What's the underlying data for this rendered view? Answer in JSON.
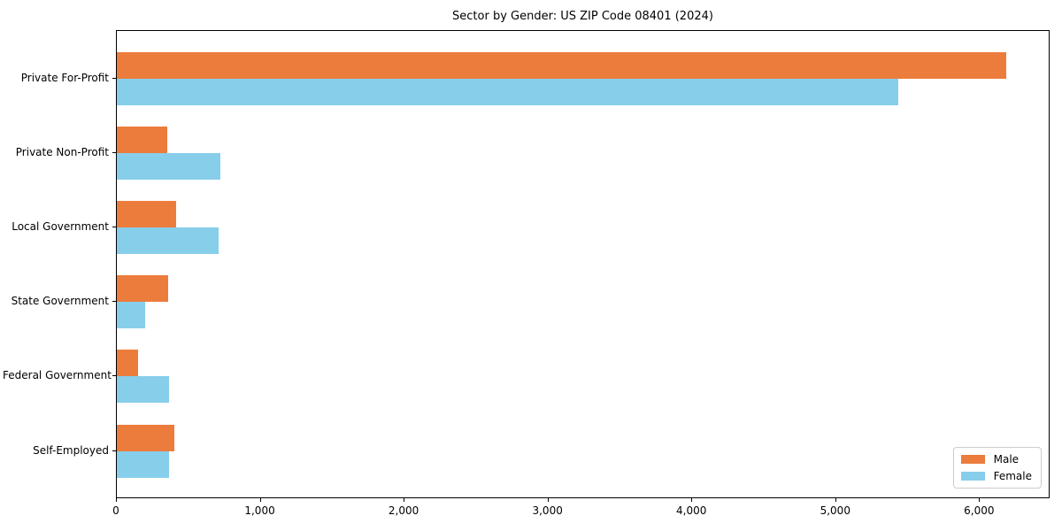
{
  "chart_data": {
    "type": "bar",
    "orientation": "horizontal",
    "title": "Sector by Gender: US ZIP Code 08401 (2024)",
    "categories": [
      "Private For-Profit",
      "Private Non-Profit",
      "Local Government",
      "State Government",
      "Federal Government",
      "Self-Employed"
    ],
    "series": [
      {
        "name": "Male",
        "color": "#ec7c3c",
        "values": [
          6180,
          350,
          410,
          355,
          145,
          400
        ]
      },
      {
        "name": "Female",
        "color": "#87ceeb",
        "values": [
          5430,
          720,
          710,
          195,
          360,
          365
        ]
      }
    ],
    "xlabel": "",
    "ylabel": "",
    "xlim": [
      0,
      6490
    ],
    "x_ticks": [
      0,
      1000,
      2000,
      3000,
      4000,
      5000,
      6000
    ],
    "x_tick_labels": [
      "0",
      "1,000",
      "2,000",
      "3,000",
      "4,000",
      "5,000",
      "6,000"
    ],
    "grid": false,
    "legend": {
      "position": "lower-right",
      "entries": [
        "Male",
        "Female"
      ]
    }
  }
}
